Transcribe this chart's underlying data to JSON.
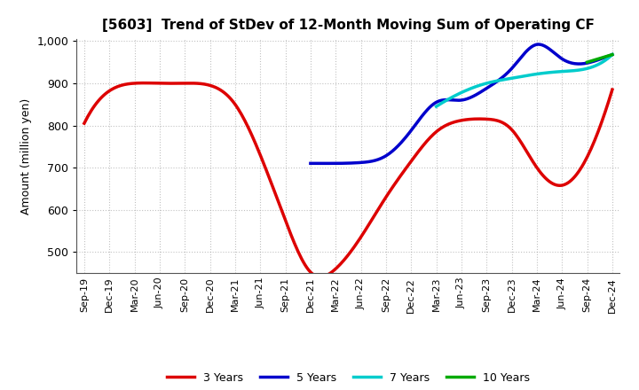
{
  "title": "[5603]  Trend of StDev of 12-Month Moving Sum of Operating CF",
  "ylabel": "Amount (million yen)",
  "ylim": [
    450,
    1005
  ],
  "yticks": [
    500,
    600,
    700,
    800,
    900,
    1000
  ],
  "background_color": "#ffffff",
  "grid_color": "#999999",
  "series": {
    "3 Years": {
      "color": "#dd0000",
      "x": [
        0,
        1,
        2,
        3,
        4,
        5,
        6,
        7,
        8,
        9,
        10,
        11,
        12,
        13,
        14,
        15,
        16,
        17,
        18,
        19,
        20,
        21
      ],
      "y": [
        805,
        882,
        900,
        900,
        900,
        895,
        850,
        730,
        575,
        452,
        460,
        535,
        630,
        715,
        785,
        812,
        815,
        790,
        700,
        658,
        725,
        885
      ]
    },
    "5 Years": {
      "color": "#0000cc",
      "x": [
        9,
        10,
        11,
        12,
        13,
        14,
        15,
        16,
        17,
        18,
        19,
        20,
        21
      ],
      "y": [
        710,
        710,
        712,
        728,
        788,
        855,
        860,
        888,
        935,
        992,
        958,
        948,
        968
      ]
    },
    "7 Years": {
      "color": "#00cccc",
      "x": [
        14,
        15,
        16,
        17,
        18,
        19,
        20,
        21
      ],
      "y": [
        845,
        878,
        900,
        912,
        922,
        928,
        935,
        968
      ]
    },
    "10 Years": {
      "color": "#00aa00",
      "x": [
        20,
        21
      ],
      "y": [
        950,
        968
      ]
    }
  },
  "xtick_labels": [
    "Sep-19",
    "Dec-19",
    "Mar-20",
    "Jun-20",
    "Sep-20",
    "Dec-20",
    "Mar-21",
    "Jun-21",
    "Sep-21",
    "Dec-21",
    "Mar-22",
    "Jun-22",
    "Sep-22",
    "Dec-22",
    "Mar-23",
    "Jun-23",
    "Sep-23",
    "Dec-23",
    "Mar-24",
    "Jun-24",
    "Sep-24",
    "Dec-24"
  ],
  "legend_order": [
    "3 Years",
    "5 Years",
    "7 Years",
    "10 Years"
  ],
  "linewidth": 2.5,
  "figsize": [
    7.2,
    4.4
  ],
  "dpi": 100
}
